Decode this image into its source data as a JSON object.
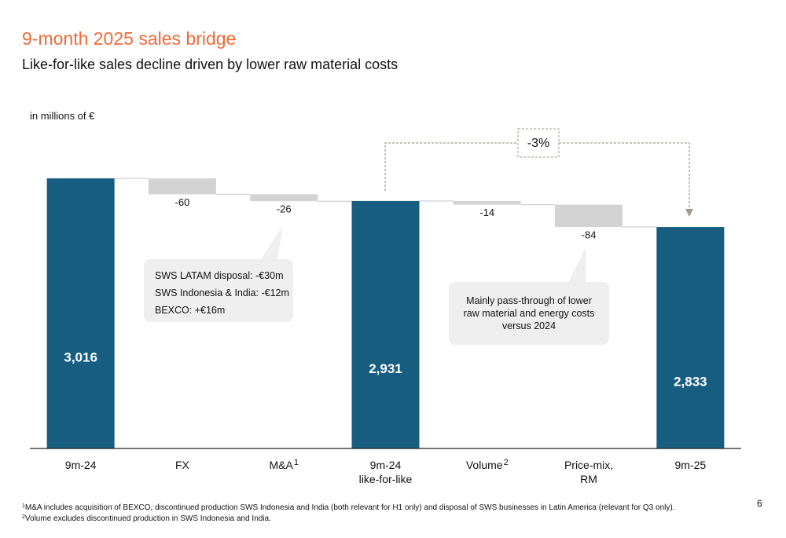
{
  "chart_data": {
    "type": "waterfall",
    "title": "9-month 2025 sales bridge",
    "subtitle": "Like-for-like sales decline driven by lower raw material costs",
    "unit_label": "in millions of €",
    "categories": [
      "9m-24",
      "FX",
      "M&A",
      "9m-24\nlike-for-like",
      "Volume",
      "Price-mix,\nRM",
      "9m-25"
    ],
    "category_notes": [
      null,
      null,
      "1",
      null,
      "2",
      null,
      null
    ],
    "values": [
      3016,
      -60,
      -26,
      2931,
      -14,
      -84,
      2833
    ],
    "value_labels": [
      "3,016",
      "-60",
      "-26",
      "2,931",
      "-14",
      "-84",
      "2,833"
    ],
    "totals": [
      true,
      false,
      false,
      true,
      false,
      false,
      true
    ],
    "total_color": "#175d80",
    "delta_color": "#d3d3d3",
    "ylim": [
      2000,
      3300
    ],
    "change_annotation": "-3%",
    "callouts": [
      {
        "lines": [
          "SWS LATAM disposal: -€30m",
          "SWS Indonesia & India: -€12m",
          "BEXCO: +€16m"
        ]
      },
      {
        "lines": [
          "Mainly pass-through of lower raw material and energy costs versus 2024"
        ]
      }
    ],
    "footnotes": [
      {
        "marker": "1",
        "text": "M&A includes acquisition of BEXCO, discontinued production SWS Indonesia and India (both relevant for H1 only) and disposal of SWS businesses in Latin America (relevant for Q3 only)."
      },
      {
        "marker": "2",
        "text": "Volume excludes discontinued production in SWS Indonesia and India."
      }
    ],
    "page_number": "6"
  }
}
